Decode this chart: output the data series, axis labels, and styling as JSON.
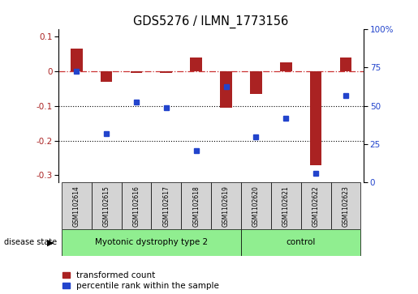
{
  "title": "GDS5276 / ILMN_1773156",
  "samples": [
    "GSM1102614",
    "GSM1102615",
    "GSM1102616",
    "GSM1102617",
    "GSM1102618",
    "GSM1102619",
    "GSM1102620",
    "GSM1102621",
    "GSM1102622",
    "GSM1102623"
  ],
  "red_bars": [
    0.065,
    -0.03,
    -0.005,
    -0.005,
    0.038,
    -0.105,
    -0.065,
    0.025,
    -0.27,
    0.04
  ],
  "blue_dots": [
    0.0,
    -0.18,
    -0.09,
    -0.105,
    -0.23,
    -0.045,
    -0.19,
    -0.135,
    -0.295,
    -0.07
  ],
  "ylim_left": [
    -0.32,
    0.12
  ],
  "ylim_right": [
    0,
    100
  ],
  "yticks_left": [
    0.1,
    0.0,
    -0.1,
    -0.2,
    -0.3
  ],
  "ytick_labels_left": [
    "0.1",
    "0",
    "-0.1",
    "-0.2",
    "-0.3"
  ],
  "yticks_right": [
    100,
    75,
    50,
    25,
    0
  ],
  "ytick_labels_right": [
    "100%",
    "75",
    "50",
    "25",
    "0"
  ],
  "disease_groups": [
    {
      "label": "Myotonic dystrophy type 2",
      "start": 0,
      "end": 5,
      "color": "#90ee90"
    },
    {
      "label": "control",
      "start": 6,
      "end": 9,
      "color": "#90ee90"
    }
  ],
  "red_color": "#aa2222",
  "blue_color": "#2244cc",
  "dashed_line_color": "#cc3333",
  "dotted_line_color": "#000000",
  "bg_color": "#ffffff",
  "bar_width": 0.4,
  "legend_red_label": "transformed count",
  "legend_blue_label": "percentile rank within the sample",
  "disease_state_label": "disease state",
  "sample_box_color": "#d4d4d4"
}
